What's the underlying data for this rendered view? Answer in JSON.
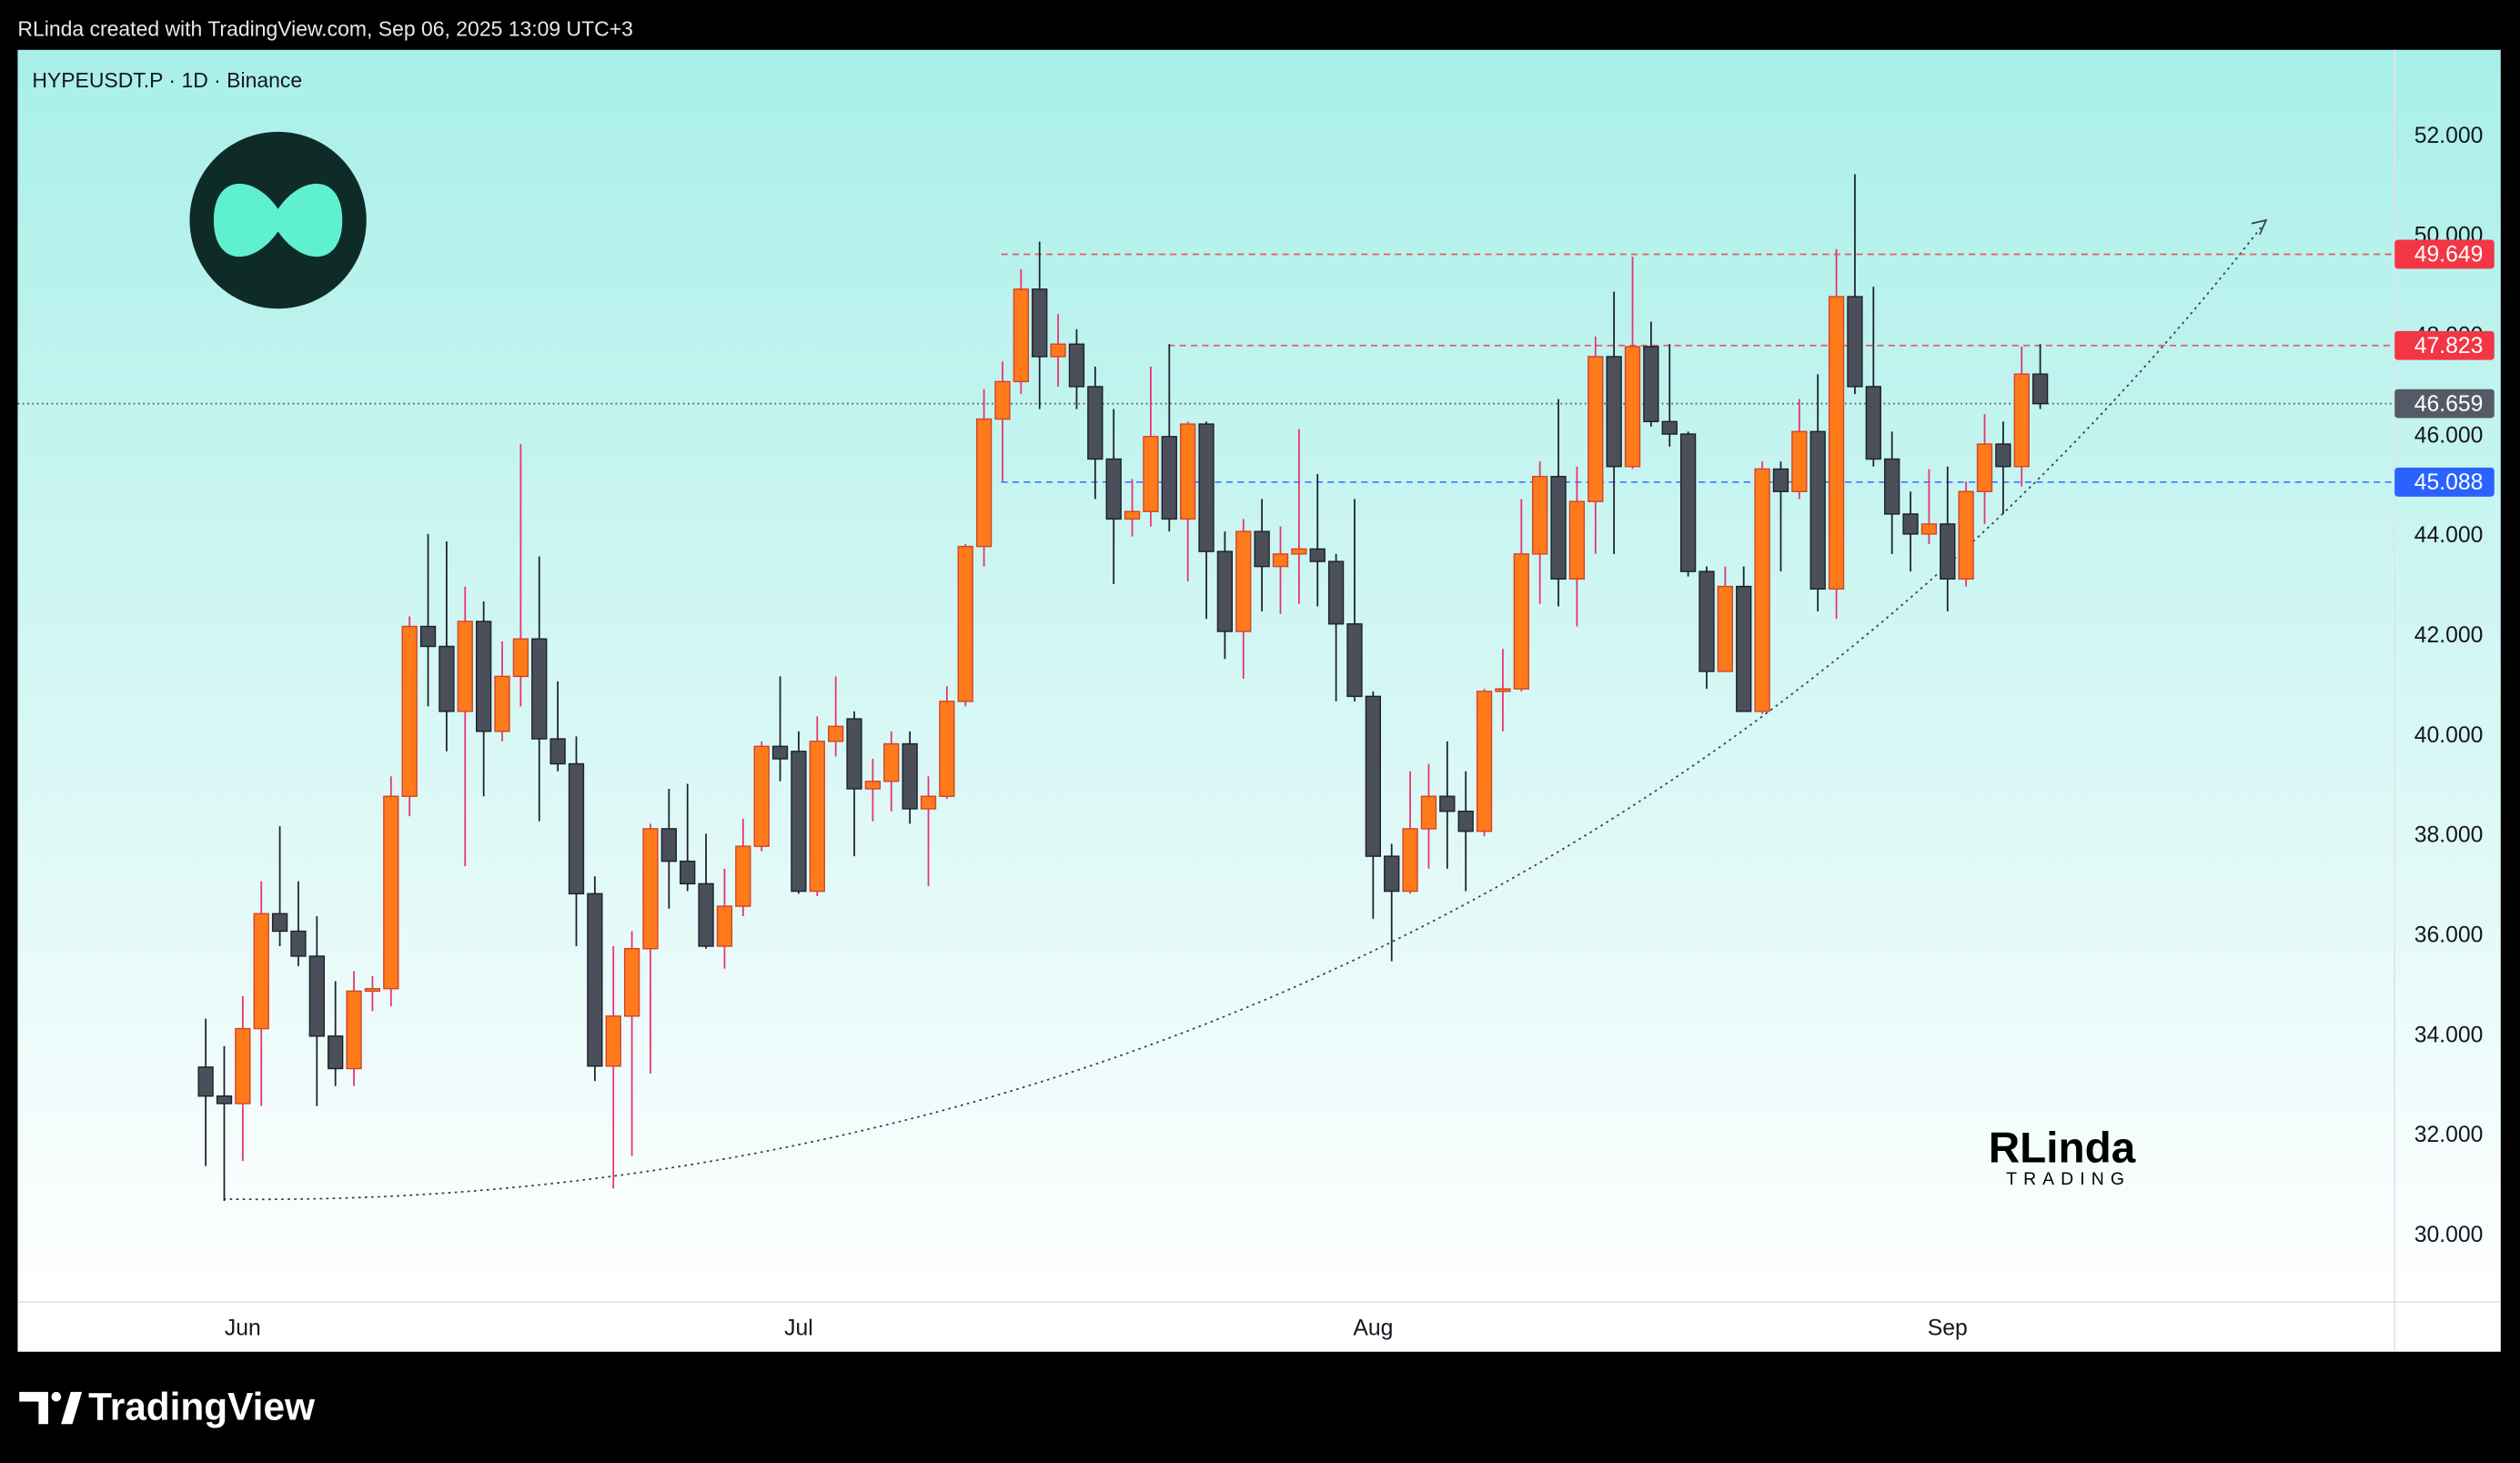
{
  "header": "RLinda created with TradingView.com, Sep 06, 2025 13:09 UTC+3",
  "footer": "TradingView",
  "watermark": {
    "name": "RLinda",
    "tagline": "TRADING"
  },
  "chart_data": {
    "type": "candlestick",
    "title": "HYPEUSDT.P · 1D · Binance",
    "categories": [
      null,
      null,
      "Jun",
      null,
      null,
      null,
      null,
      null,
      null,
      null,
      null,
      null,
      null,
      null,
      null,
      null,
      null,
      null,
      null,
      null,
      null,
      null,
      null,
      null,
      null,
      null,
      null,
      null,
      null,
      null,
      null,
      null,
      "Jul",
      null,
      null,
      null,
      null,
      null,
      null,
      null,
      null,
      null,
      null,
      null,
      null,
      null,
      null,
      null,
      null,
      null,
      null,
      null,
      null,
      null,
      null,
      null,
      null,
      null,
      null,
      null,
      null,
      null,
      null,
      "Aug",
      null,
      null,
      null,
      null,
      null,
      null,
      null,
      null,
      null,
      null,
      null,
      null,
      null,
      null,
      null,
      null,
      null,
      null,
      null,
      null,
      null,
      null,
      null,
      null,
      null,
      null,
      null,
      null,
      null,
      null,
      "Sep",
      null,
      null,
      null,
      null,
      null
    ],
    "open": [
      33.38,
      32.8,
      32.65,
      34.15,
      36.45,
      36.1,
      35.6,
      34.0,
      33.35,
      34.9,
      34.95,
      38.8,
      42.2,
      41.8,
      40.5,
      42.3,
      40.1,
      41.2,
      41.95,
      39.95,
      39.45,
      36.85,
      33.4,
      34.4,
      35.75,
      38.15,
      37.5,
      37.05,
      35.8,
      36.6,
      37.8,
      39.8,
      39.7,
      36.9,
      39.9,
      40.35,
      38.95,
      39.1,
      39.85,
      38.55,
      38.8,
      40.7,
      43.8,
      46.35,
      47.1,
      48.95,
      47.6,
      47.85,
      47.0,
      45.55,
      44.35,
      44.5,
      46.0,
      44.35,
      46.25,
      43.7,
      42.1,
      44.1,
      43.4,
      43.65,
      43.75,
      43.5,
      42.25,
      40.8,
      37.6,
      36.9,
      38.15,
      38.8,
      38.5,
      38.1,
      40.9,
      40.95,
      43.65,
      45.2,
      43.15,
      44.7,
      47.6,
      45.4,
      47.8,
      46.3,
      46.05,
      43.3,
      41.3,
      43.0,
      40.5,
      45.35,
      44.9,
      46.1,
      42.95,
      48.8,
      47.0,
      45.55,
      44.45,
      44.05,
      44.25,
      43.15,
      44.9,
      45.85,
      45.4,
      47.25
    ],
    "high": [
      34.35,
      33.8,
      34.8,
      37.1,
      38.2,
      37.1,
      36.4,
      35.1,
      35.3,
      35.2,
      39.2,
      42.4,
      44.05,
      43.9,
      43.0,
      42.7,
      41.9,
      45.85,
      43.6,
      41.1,
      40.0,
      37.2,
      35.8,
      36.1,
      38.25,
      38.95,
      39.05,
      38.05,
      37.35,
      38.35,
      39.9,
      41.2,
      40.1,
      40.4,
      41.2,
      40.5,
      39.55,
      40.1,
      40.1,
      39.2,
      41.0,
      43.85,
      46.95,
      47.5,
      49.35,
      49.9,
      48.45,
      48.15,
      47.4,
      46.55,
      45.15,
      47.4,
      47.85,
      46.3,
      46.3,
      44.1,
      44.35,
      44.75,
      44.2,
      46.15,
      45.25,
      43.65,
      44.75,
      40.9,
      37.85,
      39.3,
      39.45,
      39.9,
      39.3,
      40.95,
      41.75,
      44.75,
      45.5,
      46.75,
      45.4,
      48.0,
      48.9,
      49.6,
      48.3,
      47.85,
      46.1,
      43.4,
      43.4,
      43.4,
      45.5,
      45.5,
      46.75,
      47.25,
      49.75,
      51.25,
      49.0,
      46.1,
      44.9,
      45.35,
      45.4,
      45.1,
      46.45,
      46.3,
      47.8,
      47.85
    ],
    "low": [
      31.4,
      30.7,
      31.5,
      32.6,
      35.8,
      35.4,
      32.6,
      33.0,
      33.0,
      34.5,
      34.6,
      38.4,
      40.6,
      39.7,
      37.4,
      38.8,
      39.9,
      40.6,
      38.3,
      39.3,
      35.8,
      33.1,
      30.95,
      31.6,
      33.25,
      36.55,
      36.9,
      35.75,
      35.35,
      36.4,
      37.7,
      39.1,
      36.85,
      36.8,
      39.6,
      37.6,
      38.3,
      38.5,
      38.25,
      37.0,
      38.75,
      40.6,
      43.4,
      45.1,
      46.85,
      46.55,
      47.0,
      46.55,
      44.75,
      43.05,
      44.0,
      44.2,
      44.1,
      43.1,
      42.35,
      41.55,
      41.15,
      42.5,
      42.45,
      42.65,
      42.6,
      40.7,
      40.7,
      36.35,
      35.5,
      36.85,
      37.35,
      37.35,
      36.9,
      38.0,
      40.1,
      40.9,
      42.65,
      42.6,
      42.2,
      43.65,
      43.65,
      45.35,
      46.2,
      45.8,
      43.2,
      40.95,
      41.3,
      40.5,
      40.45,
      43.3,
      44.75,
      42.5,
      42.35,
      46.85,
      45.4,
      43.65,
      43.3,
      43.85,
      42.5,
      43.0,
      44.25,
      44.45,
      45.0,
      46.55
    ],
    "close": [
      32.8,
      32.65,
      34.15,
      36.45,
      36.1,
      35.6,
      34.0,
      33.35,
      34.9,
      34.95,
      38.8,
      42.2,
      41.8,
      40.5,
      42.3,
      40.1,
      41.2,
      41.95,
      39.95,
      39.45,
      36.85,
      33.4,
      34.4,
      35.75,
      38.15,
      37.5,
      37.05,
      35.8,
      36.6,
      37.8,
      39.8,
      39.55,
      36.9,
      39.9,
      40.2,
      38.95,
      39.1,
      39.85,
      38.55,
      38.8,
      40.7,
      43.8,
      46.35,
      47.1,
      48.95,
      47.6,
      47.85,
      47.0,
      45.55,
      44.35,
      44.5,
      46.0,
      44.35,
      46.25,
      43.7,
      42.1,
      44.1,
      43.4,
      43.65,
      43.75,
      43.5,
      42.25,
      40.8,
      37.6,
      36.9,
      38.15,
      38.8,
      38.5,
      38.1,
      40.9,
      40.95,
      43.65,
      45.2,
      43.15,
      44.7,
      47.6,
      45.4,
      47.8,
      46.3,
      46.05,
      43.3,
      41.3,
      43.0,
      40.5,
      45.35,
      44.9,
      46.1,
      42.95,
      48.8,
      47.0,
      45.55,
      44.45,
      44.05,
      44.25,
      43.15,
      44.9,
      45.85,
      45.4,
      47.25,
      46.659
    ],
    "up_color": "#ff7a1a",
    "down_color": "#4b4f5a",
    "last_price_color": "#555b66",
    "ylim": [
      28.68,
      53.74
    ],
    "yticks": [
      {
        "value": 30,
        "label": "30.000"
      },
      {
        "value": 32,
        "label": "32.000"
      },
      {
        "value": 34,
        "label": "34.000"
      },
      {
        "value": 36,
        "label": "36.000"
      },
      {
        "value": 38,
        "label": "38.000"
      },
      {
        "value": 40,
        "label": "40.000"
      },
      {
        "value": 42,
        "label": "42.000"
      },
      {
        "value": 44,
        "label": "44.000"
      },
      {
        "value": 46,
        "label": "46.000"
      },
      {
        "value": 48,
        "label": "48.000"
      },
      {
        "value": 50,
        "label": "50.000"
      },
      {
        "value": 52,
        "label": "52.000"
      }
    ],
    "price_lines": [
      {
        "value": 49.649,
        "color": "#f23645"
      },
      {
        "value": 47.823,
        "color": "#f23645"
      },
      {
        "value": 45.088,
        "color": "#2962ff"
      }
    ]
  }
}
